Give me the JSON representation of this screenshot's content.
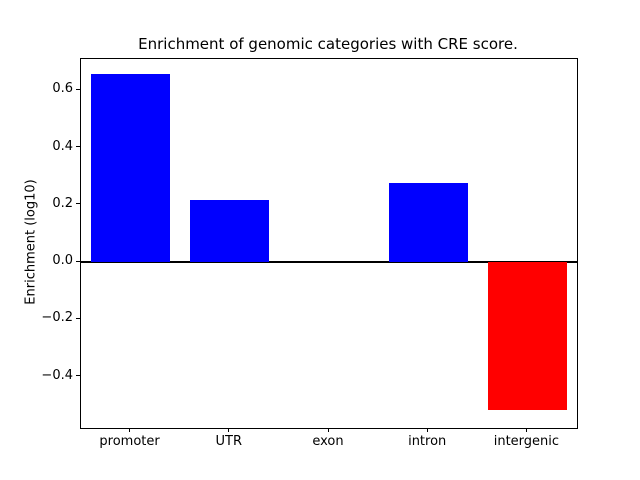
{
  "figure": {
    "title": "Enrichment of genomic categories with CRE score.",
    "ylabel": "Enrichment (log10)"
  },
  "chart_data": {
    "type": "bar",
    "title": "Enrichment of genomic categories with CRE score.",
    "xlabel": "",
    "ylabel": "Enrichment (log10)",
    "categories": [
      "promoter",
      "UTR",
      "exon",
      "intron",
      "intergenic"
    ],
    "values": [
      0.657,
      0.216,
      0.0,
      0.276,
      -0.518
    ],
    "bar_colors": [
      "#0000ff",
      "#0000ff",
      "#0000ff",
      "#0000ff",
      "#ff0000"
    ],
    "positive_color": "#0000ff",
    "negative_color": "#ff0000",
    "ylim": [
      -0.58,
      0.71
    ],
    "yticks": [
      {
        "value": -0.4,
        "label": "−0.4"
      },
      {
        "value": -0.2,
        "label": "−0.2"
      },
      {
        "value": 0.0,
        "label": "0.0"
      },
      {
        "value": 0.2,
        "label": "0.2"
      },
      {
        "value": 0.4,
        "label": "0.4"
      },
      {
        "value": 0.6,
        "label": "0.6"
      }
    ],
    "grid": false,
    "legend": null,
    "zero_line": true,
    "bar_width_fraction": 0.8
  }
}
